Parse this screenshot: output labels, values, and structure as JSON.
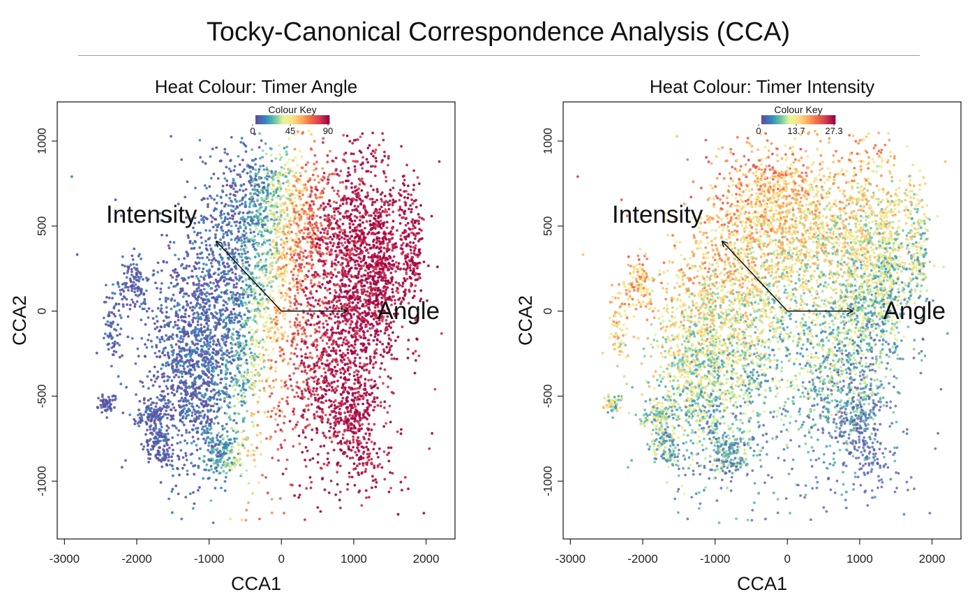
{
  "figure": {
    "title": "Tocky-Canonical Correspondence Analysis (CCA)"
  },
  "chart_data": [
    {
      "type": "scatter",
      "title": "Heat Colour: Timer Angle",
      "xlabel": "CCA1",
      "ylabel": "CCA2",
      "xlim": [
        -3100,
        2400
      ],
      "ylim": [
        -1340,
        1230
      ],
      "x_ticks": [
        "-3000",
        "-2000",
        "-1000",
        "0",
        "1000",
        "2000"
      ],
      "y_ticks": [
        "-1000",
        "-500",
        "0",
        "500",
        "1000"
      ],
      "grid": false,
      "legend": {
        "title": "Colour Key",
        "placement": "top-center",
        "labels": [
          "0",
          "45",
          "90"
        ],
        "colors": [
          "#5e4fa2",
          "#3288bd",
          "#66c2a5",
          "#e6f598",
          "#fee08b",
          "#fdae61",
          "#f46d43",
          "#d53e4f",
          "#9e0142"
        ]
      },
      "vectors": [
        {
          "label": "Intensity",
          "end": [
            -900,
            410
          ]
        },
        {
          "label": "Angle",
          "end": [
            900,
            0
          ]
        }
      ],
      "vector_origin": [
        0,
        0
      ]
    },
    {
      "type": "scatter",
      "title": "Heat Colour: Timer Intensity",
      "xlabel": "CCA1",
      "ylabel": "CCA2",
      "xlim": [
        -3100,
        2400
      ],
      "ylim": [
        -1340,
        1230
      ],
      "x_ticks": [
        "-3000",
        "-2000",
        "-1000",
        "0",
        "1000",
        "2000"
      ],
      "y_ticks": [
        "-1000",
        "-500",
        "0",
        "500",
        "1000"
      ],
      "grid": false,
      "legend": {
        "title": "Colour Key",
        "placement": "top-center",
        "labels": [
          "0",
          "13.7",
          "27.3"
        ],
        "colors": [
          "#5e4fa2",
          "#3288bd",
          "#66c2a5",
          "#e6f598",
          "#fee08b",
          "#fdae61",
          "#f46d43",
          "#d53e4f",
          "#9e0142"
        ]
      },
      "vectors": [
        {
          "label": "Intensity",
          "end": [
            -900,
            410
          ]
        },
        {
          "label": "Angle",
          "end": [
            900,
            0
          ]
        }
      ],
      "vector_origin": [
        0,
        0
      ]
    }
  ]
}
